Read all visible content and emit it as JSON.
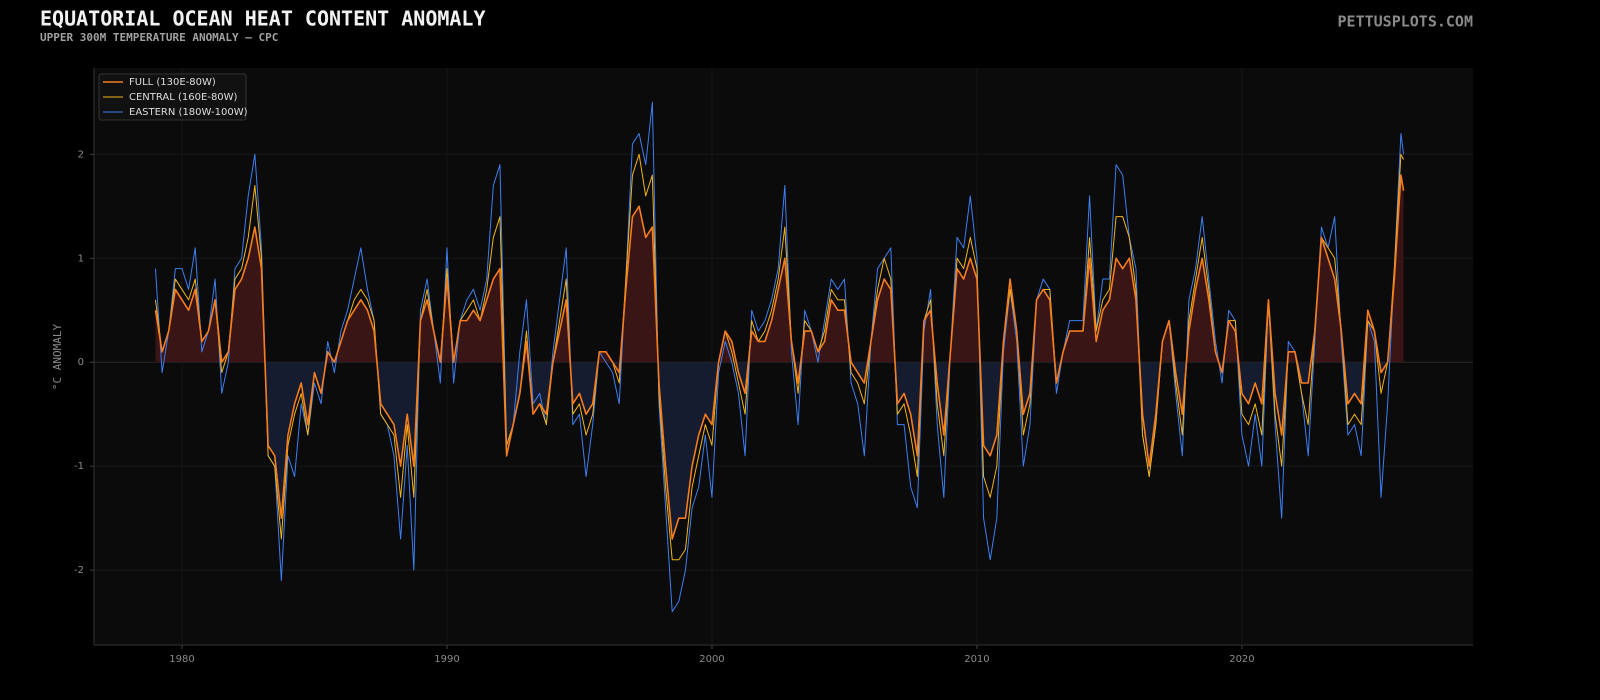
{
  "chart_data": {
    "type": "line",
    "title": "EQUATORIAL OCEAN HEAT CONTENT ANOMALY",
    "subtitle": "UPPER 300M TEMPERATURE ANOMALY — CPC",
    "watermark": "PETTUSPLOTS.COM",
    "ylabel": "°C ANOMALY",
    "xlim": [
      1976.68,
      2028.72
    ],
    "xticks": [
      1980,
      1990,
      2000,
      2010,
      2020
    ],
    "ylim": [
      -2.72,
      2.83
    ],
    "yticks": [
      -2,
      -1,
      0,
      1,
      2
    ],
    "grid": true,
    "legend": "upper left",
    "positive_fill": "#3a1515",
    "negative_fill": "#161c30",
    "x": [
      1979,
      1979.25,
      1979.5,
      1979.75,
      1980,
      1980.25,
      1980.5,
      1980.75,
      1981,
      1981.25,
      1981.5,
      1981.75,
      1982,
      1982.25,
      1982.5,
      1982.75,
      1983,
      1983.25,
      1983.5,
      1983.75,
      1984,
      1984.25,
      1984.5,
      1984.75,
      1985,
      1985.25,
      1985.5,
      1985.75,
      1986,
      1986.25,
      1986.5,
      1986.75,
      1987,
      1987.25,
      1987.5,
      1987.75,
      1988,
      1988.25,
      1988.5,
      1988.75,
      1989,
      1989.25,
      1989.5,
      1989.75,
      1990,
      1990.25,
      1990.5,
      1990.75,
      1991,
      1991.25,
      1991.5,
      1991.75,
      1992,
      1992.25,
      1992.5,
      1992.75,
      1993,
      1993.25,
      1993.5,
      1993.75,
      1994,
      1994.25,
      1994.5,
      1994.75,
      1995,
      1995.25,
      1995.5,
      1995.75,
      1996,
      1996.25,
      1996.5,
      1996.75,
      1997,
      1997.25,
      1997.5,
      1997.75,
      1998,
      1998.25,
      1998.5,
      1998.75,
      1999,
      1999.25,
      1999.5,
      1999.75,
      2000,
      2000.25,
      2000.5,
      2000.75,
      2001,
      2001.25,
      2001.5,
      2001.75,
      2002,
      2002.25,
      2002.5,
      2002.75,
      2003,
      2003.25,
      2003.5,
      2003.75,
      2004,
      2004.25,
      2004.5,
      2004.75,
      2005,
      2005.25,
      2005.5,
      2005.75,
      2006,
      2006.25,
      2006.5,
      2006.75,
      2007,
      2007.25,
      2007.5,
      2007.75,
      2008,
      2008.25,
      2008.5,
      2008.75,
      2009,
      2009.25,
      2009.5,
      2009.75,
      2010,
      2010.25,
      2010.5,
      2010.75,
      2011,
      2011.25,
      2011.5,
      2011.75,
      2012,
      2012.25,
      2012.5,
      2012.75,
      2013,
      2013.25,
      2013.5,
      2013.75,
      2014,
      2014.25,
      2014.5,
      2014.75,
      2015,
      2015.25,
      2015.5,
      2015.75,
      2016,
      2016.25,
      2016.5,
      2016.75,
      2017,
      2017.25,
      2017.5,
      2017.75,
      2018,
      2018.25,
      2018.5,
      2018.75,
      2019,
      2019.25,
      2019.5,
      2019.75,
      2020,
      2020.25,
      2020.5,
      2020.75,
      2021,
      2021.25,
      2021.5,
      2021.75,
      2022,
      2022.25,
      2022.5,
      2022.75,
      2023,
      2023.25,
      2023.5,
      2023.75,
      2024,
      2024.25,
      2024.5,
      2024.75,
      2025,
      2025.25,
      2025.5,
      2025.75,
      2026,
      2026.1
    ],
    "series": [
      {
        "name": "FULL (130E-80W)",
        "color": "#f57c1f",
        "values": [
          0.5,
          0.1,
          0.3,
          0.7,
          0.6,
          0.5,
          0.7,
          0.2,
          0.3,
          0.6,
          0.0,
          0.1,
          0.7,
          0.8,
          1.0,
          1.3,
          0.9,
          -0.8,
          -0.9,
          -1.5,
          -0.7,
          -0.4,
          -0.2,
          -0.6,
          -0.1,
          -0.3,
          0.1,
          0.0,
          0.2,
          0.4,
          0.5,
          0.6,
          0.5,
          0.3,
          -0.4,
          -0.5,
          -0.6,
          -1.0,
          -0.5,
          -1.0,
          0.4,
          0.6,
          0.3,
          0.0,
          0.8,
          0.0,
          0.4,
          0.4,
          0.5,
          0.4,
          0.6,
          0.8,
          0.9,
          -0.9,
          -0.6,
          -0.3,
          0.2,
          -0.5,
          -0.4,
          -0.5,
          0.0,
          0.3,
          0.6,
          -0.4,
          -0.3,
          -0.5,
          -0.4,
          0.1,
          0.1,
          0.0,
          -0.1,
          0.7,
          1.4,
          1.5,
          1.2,
          1.3,
          -0.2,
          -1.0,
          -1.7,
          -1.5,
          -1.5,
          -1.0,
          -0.7,
          -0.5,
          -0.6,
          0.0,
          0.3,
          0.2,
          -0.1,
          -0.3,
          0.3,
          0.2,
          0.2,
          0.4,
          0.7,
          1.0,
          0.2,
          -0.2,
          0.3,
          0.3,
          0.1,
          0.2,
          0.6,
          0.5,
          0.5,
          0.0,
          -0.1,
          -0.2,
          0.2,
          0.6,
          0.8,
          0.7,
          -0.4,
          -0.3,
          -0.5,
          -0.9,
          0.4,
          0.5,
          -0.2,
          -0.7,
          0.1,
          0.9,
          0.8,
          1.0,
          0.8,
          -0.8,
          -0.9,
          -0.7,
          0.2,
          0.8,
          0.3,
          -0.5,
          -0.3,
          0.6,
          0.7,
          0.6,
          -0.2,
          0.1,
          0.3,
          0.3,
          0.3,
          1.0,
          0.2,
          0.5,
          0.6,
          1.0,
          0.9,
          1.0,
          0.6,
          -0.5,
          -1.0,
          -0.5,
          0.2,
          0.4,
          -0.1,
          -0.5,
          0.3,
          0.7,
          1.0,
          0.6,
          0.1,
          -0.1,
          0.4,
          0.3,
          -0.3,
          -0.4,
          -0.2,
          -0.4,
          0.6,
          -0.3,
          -0.7,
          0.1,
          0.1,
          -0.2,
          -0.2,
          0.3,
          1.2,
          1.0,
          0.8,
          0.3,
          -0.4,
          -0.3,
          -0.4,
          0.5,
          0.3,
          -0.1,
          0.0,
          0.8,
          1.8,
          1.65
        ]
      },
      {
        "name": "CENTRAL (160E-80W)",
        "color": "#f2b418",
        "values": [
          0.6,
          0.1,
          0.3,
          0.8,
          0.7,
          0.6,
          0.8,
          0.2,
          0.3,
          0.6,
          -0.1,
          0.1,
          0.8,
          0.9,
          1.2,
          1.7,
          1.0,
          -0.9,
          -1.0,
          -1.7,
          -0.8,
          -0.5,
          -0.3,
          -0.7,
          -0.1,
          -0.3,
          0.1,
          0.0,
          0.2,
          0.4,
          0.6,
          0.7,
          0.6,
          0.4,
          -0.5,
          -0.6,
          -0.7,
          -1.3,
          -0.6,
          -1.3,
          0.4,
          0.7,
          0.3,
          0.0,
          0.9,
          0.0,
          0.4,
          0.5,
          0.6,
          0.4,
          0.7,
          1.2,
          1.4,
          -0.8,
          -0.6,
          -0.3,
          0.3,
          -0.5,
          -0.4,
          -0.6,
          0.0,
          0.4,
          0.8,
          -0.5,
          -0.4,
          -0.7,
          -0.5,
          0.1,
          0.1,
          0.0,
          -0.2,
          0.8,
          1.8,
          2.0,
          1.6,
          1.8,
          -0.3,
          -1.2,
          -1.9,
          -1.9,
          -1.8,
          -1.2,
          -0.9,
          -0.6,
          -0.8,
          0.0,
          0.3,
          0.1,
          -0.2,
          -0.5,
          0.4,
          0.2,
          0.3,
          0.5,
          0.8,
          1.3,
          0.2,
          -0.3,
          0.4,
          0.3,
          0.1,
          0.3,
          0.7,
          0.6,
          0.6,
          -0.1,
          -0.2,
          -0.4,
          0.2,
          0.7,
          1.0,
          0.8,
          -0.5,
          -0.4,
          -0.7,
          -1.1,
          0.4,
          0.6,
          -0.4,
          -0.9,
          0.1,
          1.0,
          0.9,
          1.2,
          0.9,
          -1.1,
          -1.3,
          -1.0,
          0.2,
          0.7,
          0.3,
          -0.7,
          -0.4,
          0.6,
          0.7,
          0.7,
          -0.2,
          0.1,
          0.3,
          0.3,
          0.3,
          1.2,
          0.3,
          0.6,
          0.7,
          1.4,
          1.4,
          1.2,
          0.7,
          -0.7,
          -1.1,
          -0.6,
          0.2,
          0.4,
          -0.2,
          -0.7,
          0.4,
          0.8,
          1.2,
          0.7,
          0.1,
          -0.1,
          0.4,
          0.4,
          -0.5,
          -0.6,
          -0.4,
          -0.7,
          0.6,
          -0.5,
          -1.0,
          0.1,
          0.1,
          -0.3,
          -0.6,
          0.3,
          1.2,
          1.1,
          1.0,
          0.3,
          -0.6,
          -0.5,
          -0.6,
          0.4,
          0.3,
          -0.3,
          0.0,
          0.9,
          2.0,
          1.95
        ]
      },
      {
        "name": "EASTERN (180W-100W)",
        "color": "#3b7ff0",
        "values": [
          0.9,
          -0.1,
          0.3,
          0.9,
          0.9,
          0.7,
          1.1,
          0.1,
          0.3,
          0.8,
          -0.3,
          0.0,
          0.9,
          1.0,
          1.6,
          2.0,
          1.1,
          -0.9,
          -1.0,
          -2.1,
          -0.9,
          -1.1,
          -0.4,
          -0.7,
          -0.2,
          -0.4,
          0.2,
          -0.1,
          0.3,
          0.5,
          0.8,
          1.1,
          0.7,
          0.4,
          -0.5,
          -0.6,
          -0.9,
          -1.7,
          -0.8,
          -2.0,
          0.5,
          0.8,
          0.3,
          -0.2,
          1.1,
          -0.2,
          0.4,
          0.6,
          0.7,
          0.5,
          0.8,
          1.7,
          1.9,
          -0.8,
          -0.6,
          0.1,
          0.6,
          -0.4,
          -0.3,
          -0.6,
          0.1,
          0.6,
          1.1,
          -0.6,
          -0.5,
          -1.1,
          -0.6,
          0.1,
          0.0,
          -0.1,
          -0.4,
          0.8,
          2.1,
          2.2,
          1.9,
          2.5,
          -0.4,
          -1.4,
          -2.4,
          -2.3,
          -2.0,
          -1.4,
          -1.2,
          -0.7,
          -1.3,
          -0.1,
          0.2,
          0.0,
          -0.3,
          -0.9,
          0.5,
          0.3,
          0.4,
          0.6,
          0.9,
          1.7,
          0.1,
          -0.6,
          0.5,
          0.3,
          0.0,
          0.4,
          0.8,
          0.7,
          0.8,
          -0.2,
          -0.4,
          -0.9,
          0.2,
          0.9,
          1.0,
          1.1,
          -0.6,
          -0.6,
          -1.2,
          -1.4,
          0.3,
          0.7,
          -0.6,
          -1.3,
          0.1,
          1.2,
          1.1,
          1.6,
          1.0,
          -1.5,
          -1.9,
          -1.5,
          0.1,
          0.7,
          0.2,
          -1.0,
          -0.6,
          0.6,
          0.8,
          0.7,
          -0.3,
          0.1,
          0.4,
          0.4,
          0.4,
          1.6,
          0.3,
          0.8,
          0.8,
          1.9,
          1.8,
          1.2,
          0.9,
          -0.7,
          -1.1,
          -0.6,
          0.2,
          0.4,
          -0.3,
          -0.9,
          0.6,
          0.9,
          1.4,
          0.8,
          0.2,
          -0.2,
          0.5,
          0.4,
          -0.7,
          -1.0,
          -0.5,
          -1.0,
          0.6,
          -0.6,
          -1.5,
          0.2,
          0.1,
          -0.3,
          -0.9,
          0.2,
          1.3,
          1.1,
          1.4,
          0.2,
          -0.7,
          -0.6,
          -0.9,
          0.4,
          0.2,
          -1.3,
          -0.4,
          0.9,
          2.2,
          2.0
        ]
      }
    ]
  }
}
